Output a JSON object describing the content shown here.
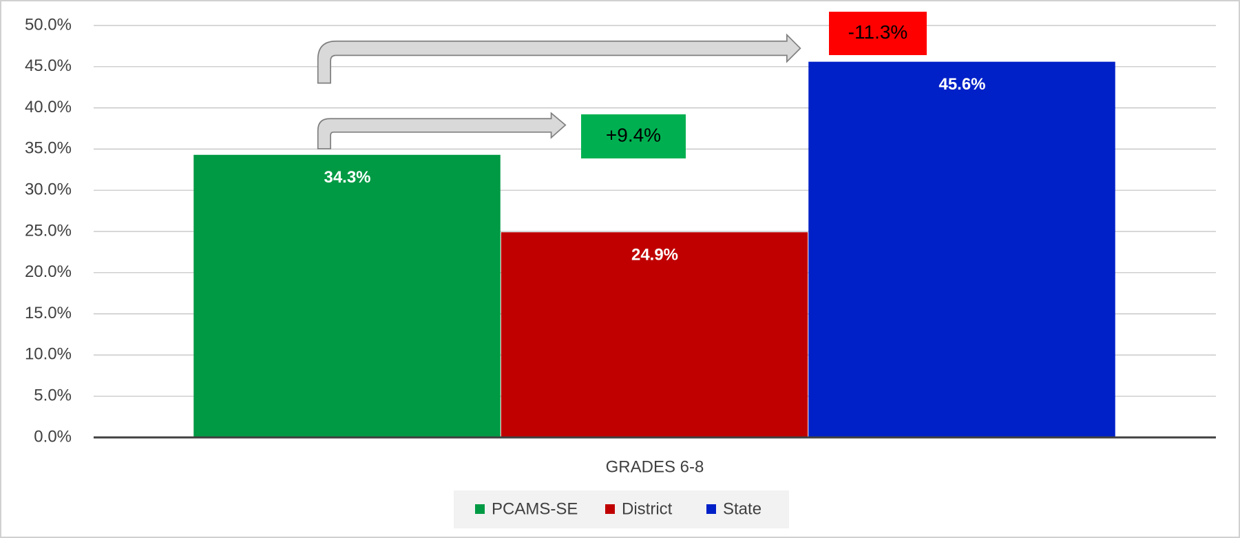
{
  "chart_data": {
    "type": "bar",
    "categories": [
      "GRADES 6-8"
    ],
    "series": [
      {
        "name": "PCAMS-SE",
        "color": "#009a44",
        "values": [
          34.3
        ],
        "value_labels": [
          "34.3%"
        ]
      },
      {
        "name": "District",
        "color": "#c00000",
        "values": [
          24.9
        ],
        "value_labels": [
          "24.9%"
        ]
      },
      {
        "name": "State",
        "color": "#0020c8",
        "values": [
          45.6
        ],
        "value_labels": [
          "45.6%"
        ]
      }
    ],
    "ylim": [
      0,
      50
    ],
    "yticks": [
      {
        "value": 0,
        "label": "0.0%"
      },
      {
        "value": 5,
        "label": "5.0%"
      },
      {
        "value": 10,
        "label": "10.0%"
      },
      {
        "value": 15,
        "label": "15.0%"
      },
      {
        "value": 20,
        "label": "20.0%"
      },
      {
        "value": 25,
        "label": "25.0%"
      },
      {
        "value": 30,
        "label": "30.0%"
      },
      {
        "value": 35,
        "label": "35.0%"
      },
      {
        "value": 40,
        "label": "40.0%"
      },
      {
        "value": 45,
        "label": "45.0%"
      },
      {
        "value": 50,
        "label": "50.0%"
      }
    ],
    "grid": true,
    "legend": "bottom",
    "annotations": [
      {
        "text": "+9.4%",
        "color": "#00b050"
      },
      {
        "text": "-11.3%",
        "color": "#ff0000"
      }
    ]
  }
}
